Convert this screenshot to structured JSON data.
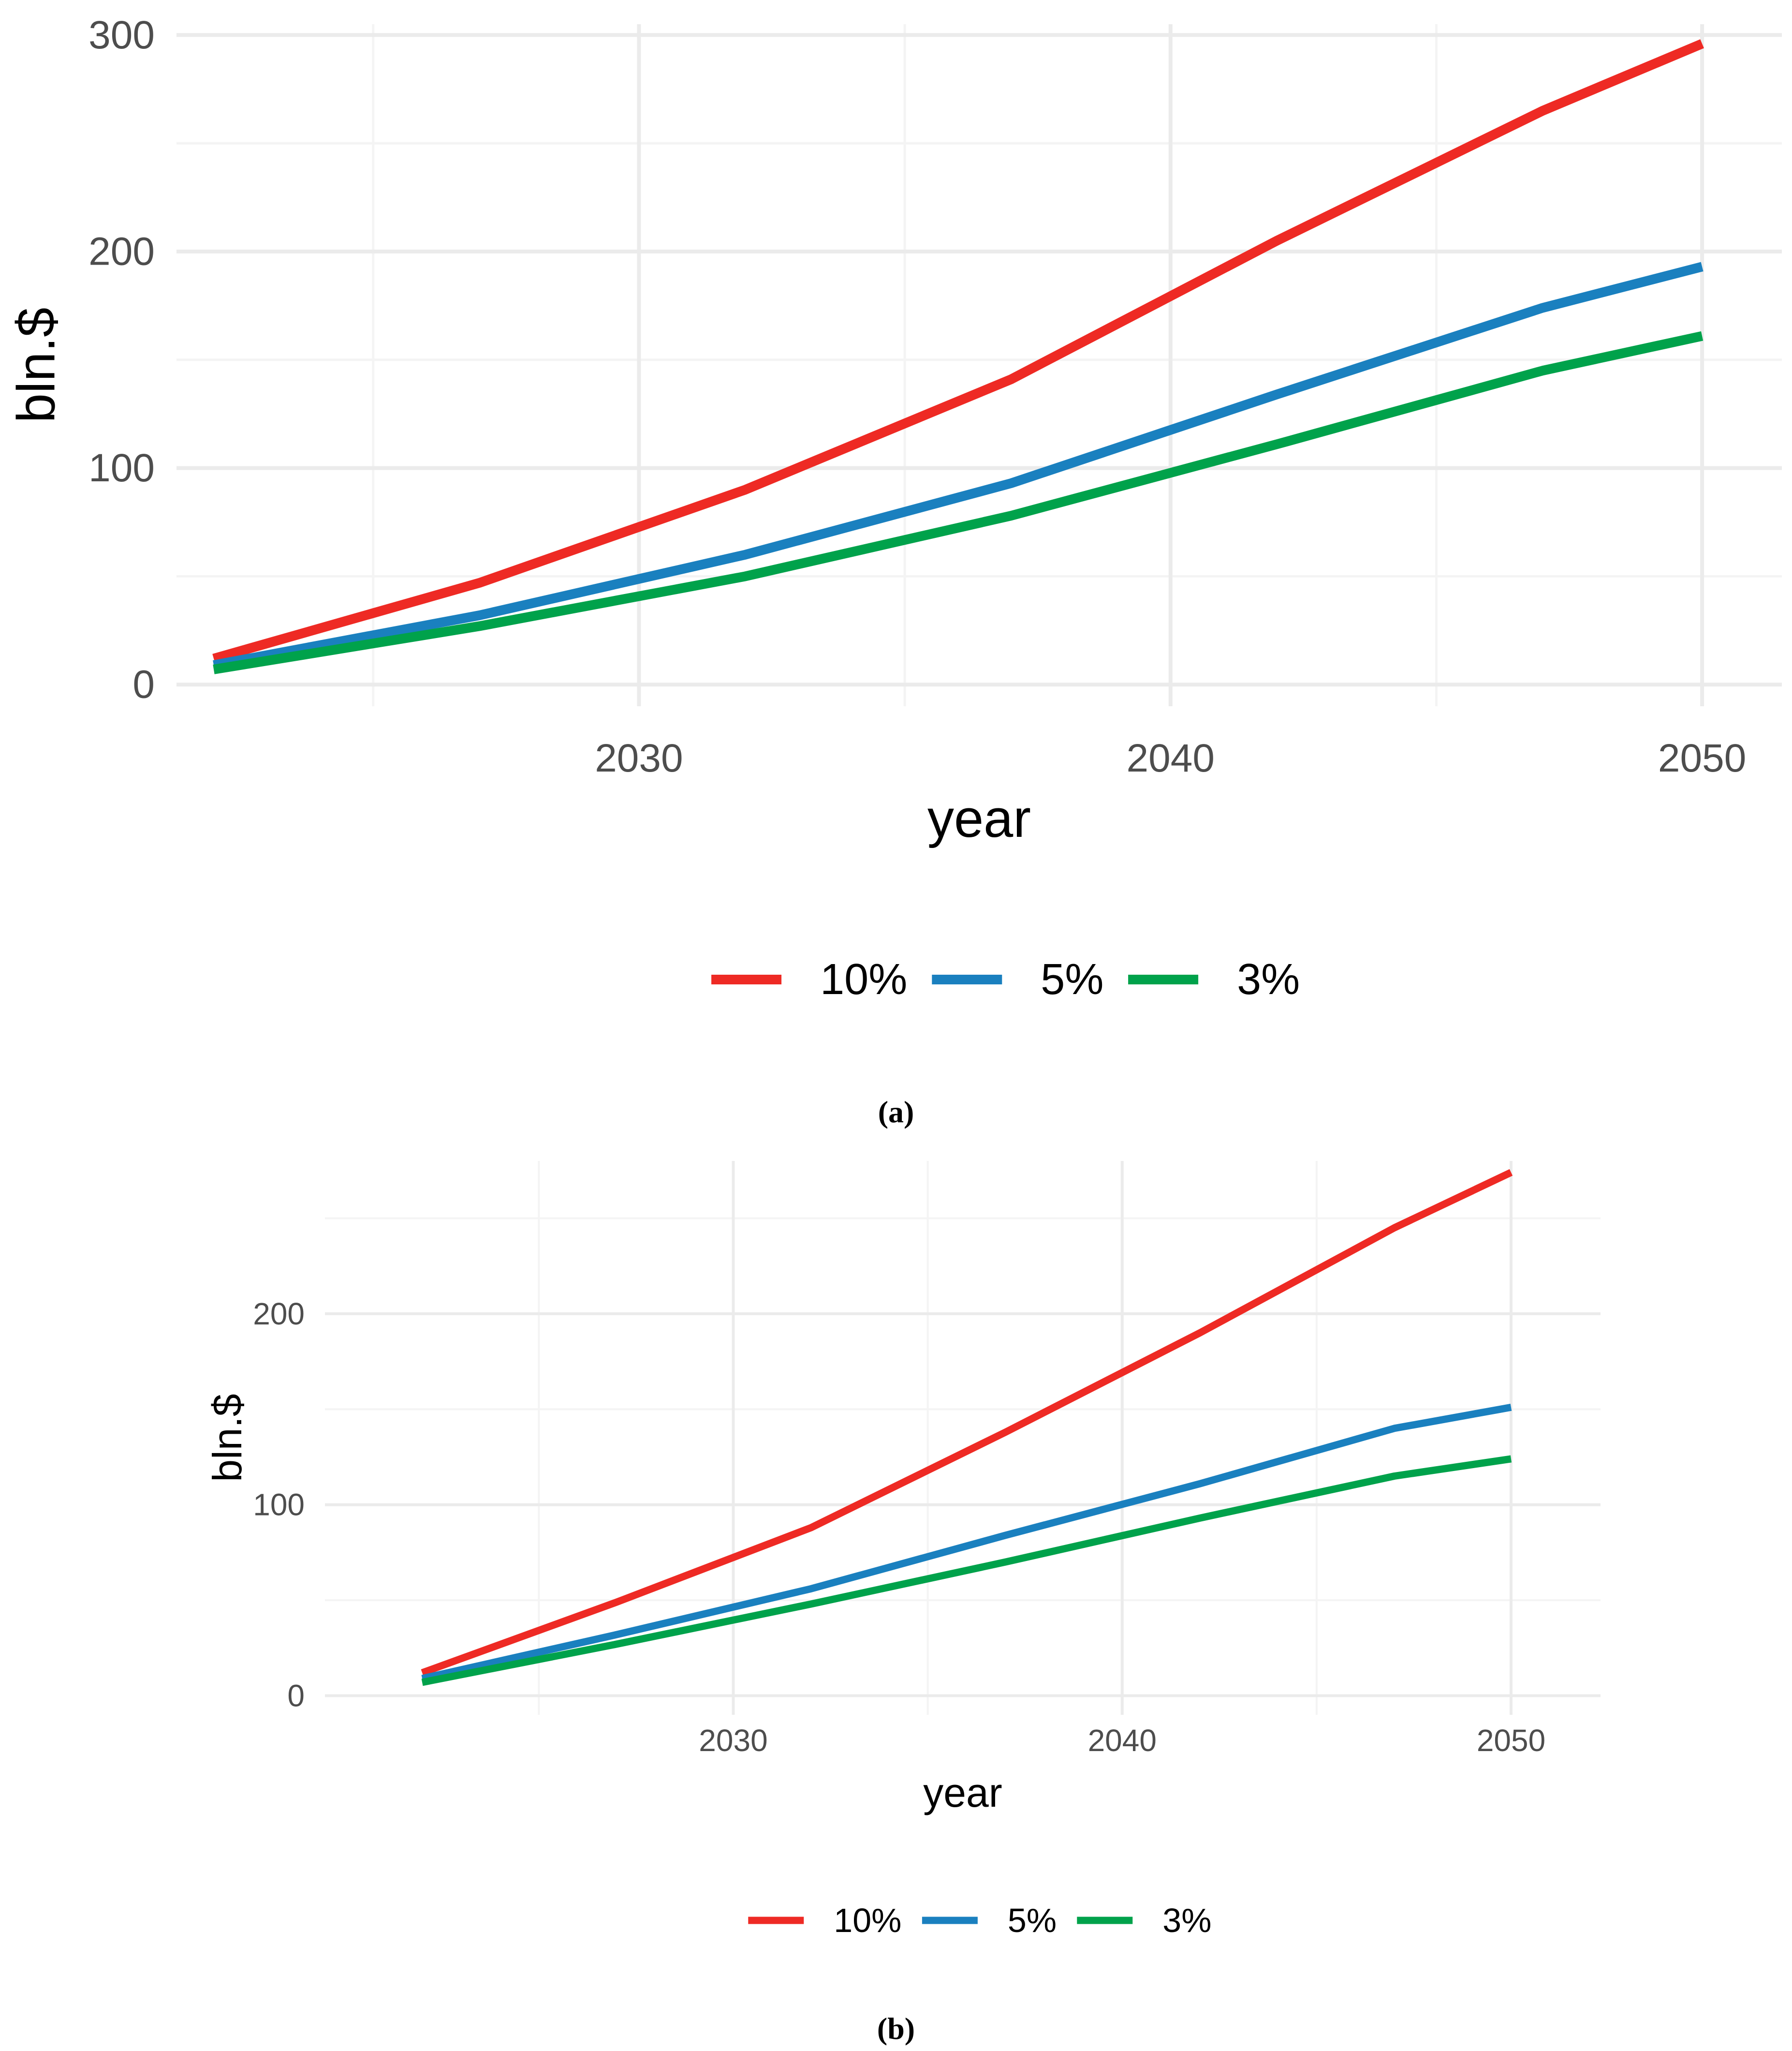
{
  "chart_data": [
    {
      "type": "line",
      "panel_label": "(a)",
      "xlabel": "year",
      "ylabel": "bln.$",
      "xlim": [
        2021.3,
        2051.5
      ],
      "ylim": [
        -10,
        305
      ],
      "x_ticks": [
        2030,
        2040,
        2050
      ],
      "x_tick_labels": [
        "2030",
        "2040",
        "2050"
      ],
      "x_minor": [
        2025,
        2035,
        2045
      ],
      "y_ticks": [
        0,
        100,
        200,
        300
      ],
      "y_tick_labels": [
        "0",
        "100",
        "200",
        "300"
      ],
      "y_minor": [
        50,
        150,
        250
      ],
      "grid": true,
      "legend_position": "bottom",
      "series": [
        {
          "name": "10%",
          "color": "#ee2a24",
          "x": [
            2022,
            2027,
            2032,
            2037,
            2042,
            2047,
            2050
          ],
          "values": [
            12,
            47,
            90,
            141,
            205,
            265,
            296
          ]
        },
        {
          "name": "5%",
          "color": "#1a80bf",
          "x": [
            2022,
            2027,
            2032,
            2037,
            2042,
            2047,
            2050
          ],
          "values": [
            9,
            32,
            60,
            93,
            134,
            174,
            193
          ]
        },
        {
          "name": "3%",
          "color": "#00a24b",
          "x": [
            2022,
            2027,
            2032,
            2037,
            2042,
            2047,
            2050
          ],
          "values": [
            7,
            27,
            50,
            78,
            111,
            145,
            161
          ]
        }
      ]
    },
    {
      "type": "line",
      "panel_label": "(b)",
      "xlabel": "year",
      "ylabel": "bln.$",
      "xlim": [
        2019.5,
        2052.3
      ],
      "ylim": [
        -10,
        280
      ],
      "x_ticks": [
        2030,
        2040,
        2050
      ],
      "x_tick_labels": [
        "2030",
        "2040",
        "2050"
      ],
      "x_minor": [
        2025,
        2035,
        2045
      ],
      "y_ticks": [
        0,
        100,
        200
      ],
      "y_tick_labels": [
        "0",
        "100",
        "200"
      ],
      "y_minor": [
        50,
        150,
        250
      ],
      "grid": true,
      "legend_position": "bottom",
      "series": [
        {
          "name": "10%",
          "color": "#ee2a24",
          "x": [
            2022,
            2027,
            2032,
            2037,
            2042,
            2047,
            2050
          ],
          "values": [
            12,
            49,
            88,
            138,
            190,
            245,
            274
          ]
        },
        {
          "name": "5%",
          "color": "#1a80bf",
          "x": [
            2022,
            2027,
            2032,
            2037,
            2042,
            2047,
            2050
          ],
          "values": [
            9,
            32,
            56,
            84,
            111,
            140,
            151
          ]
        },
        {
          "name": "3%",
          "color": "#00a24b",
          "x": [
            2022,
            2027,
            2032,
            2037,
            2042,
            2047,
            2050
          ],
          "values": [
            7,
            27,
            48,
            70,
            93,
            115,
            124
          ]
        }
      ]
    }
  ],
  "colors": {
    "panel_background": "#ffffff",
    "major_grid": "#ebebeb",
    "minor_grid": "#f4f4f4",
    "tick_text": "#4d4d4d",
    "axis_title": "#000000"
  }
}
